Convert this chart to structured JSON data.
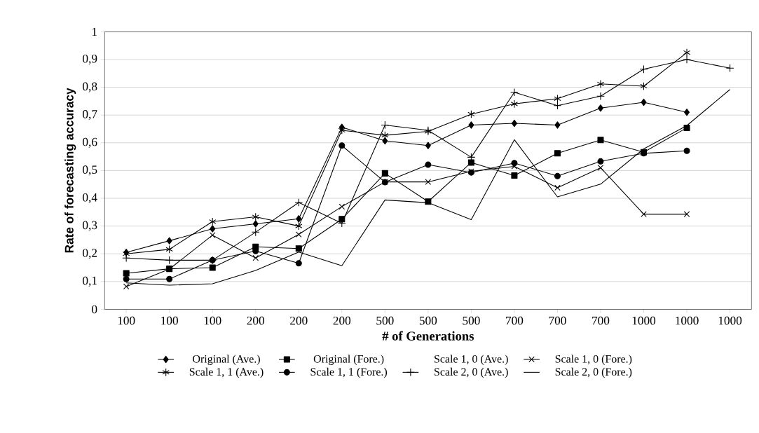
{
  "chart_data": {
    "type": "line",
    "xlabel": "# of Generations",
    "ylabel": "Rate of forecasting accuracy",
    "categories": [
      "100",
      "100",
      "100",
      "200",
      "200",
      "200",
      "500",
      "500",
      "500",
      "700",
      "700",
      "700",
      "1000",
      "1000",
      "1000"
    ],
    "ylim": [
      0,
      1
    ],
    "yticks": [
      0,
      {
        "value": 0.1,
        "label": "0,1"
      },
      {
        "value": 0.2,
        "label": "0,2"
      },
      {
        "value": 0.3,
        "label": "0,3"
      },
      {
        "value": 0.4,
        "label": "0,4"
      },
      {
        "value": 0.5,
        "label": "0,5"
      },
      {
        "value": 0.6,
        "label": "0,6"
      },
      {
        "value": 0.7,
        "label": "0,7"
      },
      {
        "value": 0.8,
        "label": "0,8"
      },
      {
        "value": 0.9,
        "label": "0,9"
      },
      1
    ],
    "grid": "y",
    "legend": "bottom",
    "series": [
      {
        "name": "Original (Ave.)",
        "color": "#000000",
        "marker": "diamond",
        "values": [
          0.205,
          0.247,
          0.29,
          0.308,
          0.326,
          0.656,
          0.607,
          0.59,
          0.664,
          0.67,
          0.664,
          0.725,
          0.746,
          0.71,
          null
        ]
      },
      {
        "name": "Original (Fore.)",
        "color": "#000000",
        "marker": "square",
        "values": [
          0.13,
          0.146,
          0.15,
          0.225,
          0.219,
          0.325,
          0.49,
          0.388,
          0.529,
          0.482,
          0.562,
          0.61,
          0.566,
          0.654,
          null
        ]
      },
      {
        "name": "Scale 1, 0 (Ave.)",
        "color": "#000000",
        "marker": "none",
        "values": [
          null,
          null,
          null,
          null,
          null,
          null,
          null,
          null,
          null,
          null,
          null,
          null,
          null,
          null,
          null
        ]
      },
      {
        "name": "Scale 1, 0 (Fore.)",
        "color": "#000000",
        "marker": "cross",
        "values": [
          0.082,
          0.145,
          0.267,
          0.185,
          0.27,
          0.37,
          0.459,
          0.459,
          0.497,
          0.515,
          0.438,
          0.51,
          0.343,
          0.343,
          null
        ]
      },
      {
        "name": "Scale 1, 1 (Ave.)",
        "color": "#000000",
        "marker": "cross",
        "values": [
          0.2,
          0.216,
          0.316,
          0.333,
          0.3,
          0.645,
          0.627,
          0.641,
          0.703,
          0.74,
          0.759,
          0.812,
          0.804,
          0.925,
          null
        ]
      },
      {
        "name": "Scale 1, 1 (Fore.)",
        "color": "#000000",
        "marker": "circle",
        "values": [
          0.109,
          0.109,
          0.177,
          0.21,
          0.166,
          0.59,
          0.458,
          0.521,
          0.493,
          0.527,
          0.48,
          0.533,
          0.562,
          0.571,
          null
        ]
      },
      {
        "name": "Scale 2, 0 (Ave.)",
        "color": "#000000",
        "marker": "plus",
        "values": [
          0.185,
          0.177,
          0.177,
          0.278,
          0.385,
          0.31,
          0.664,
          0.645,
          0.548,
          0.782,
          0.734,
          0.768,
          0.865,
          0.9,
          0.869
        ]
      },
      {
        "name": "Scale 2, 0 (Fore.)",
        "color": "#000000",
        "marker": "none",
        "values": [
          0.095,
          0.087,
          0.092,
          0.14,
          0.206,
          0.157,
          0.394,
          0.384,
          0.323,
          0.611,
          0.405,
          0.451,
          0.578,
          0.662,
          0.792
        ]
      }
    ]
  }
}
